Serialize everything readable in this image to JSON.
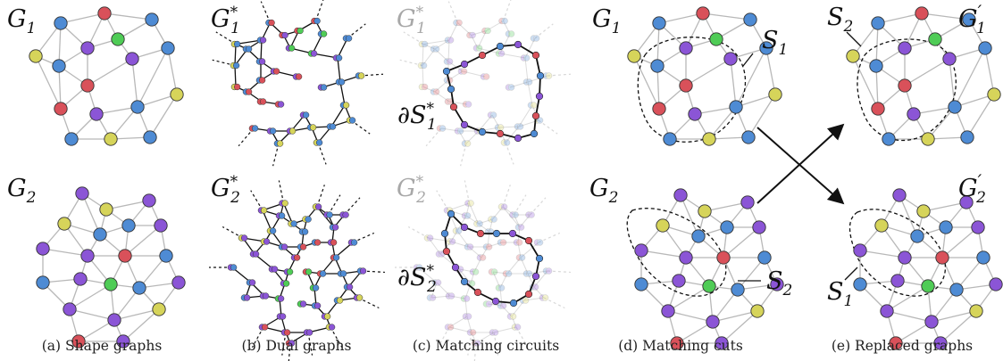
{
  "colors": {
    "blue": "#4e8bd4",
    "purple": "#8b55d6",
    "red": "#d9515a",
    "yellow": "#d6d45a",
    "green": "#4fcc56",
    "edge": "#b8b8b8",
    "faded_label": "#a8a8a8",
    "text": "#111111"
  },
  "panels": [
    {
      "id": "a",
      "caption": "(a) Shape graphs",
      "top_label": "G_1",
      "bottom_label": "G_2"
    },
    {
      "id": "b",
      "caption": "(b) Dual graphs",
      "top_label": "G_1^*",
      "bottom_label": "G_2^*"
    },
    {
      "id": "c",
      "caption": "(c) Matching circuits",
      "top_label": "G_1^*",
      "bottom_label": "G_2^*",
      "top_side_label": "∂S_1^*",
      "bottom_side_label": "∂S_2^*"
    },
    {
      "id": "d",
      "caption": "(d) Matching cuts",
      "top_label": "G_1",
      "bottom_label": "G_2",
      "top_cut_label": "S_1",
      "bottom_cut_label": "S_2"
    },
    {
      "id": "e",
      "caption": "(e) Replaced graphs",
      "top_label": "G′_1",
      "bottom_label": "G′_2",
      "top_cut_label": "S_2",
      "bottom_cut_label": "S_1"
    }
  ],
  "icons": [
    "cross-arrows-icon"
  ]
}
